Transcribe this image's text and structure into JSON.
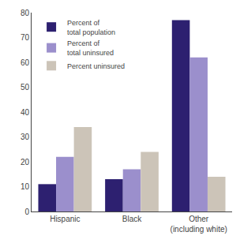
{
  "chart_data": {
    "type": "bar",
    "categories": [
      "Hispanic",
      "Black",
      "Other\n(including white)"
    ],
    "series": [
      {
        "name": "Percent of\ntotal population",
        "color": "#2d2070",
        "values": [
          11,
          13,
          77
        ]
      },
      {
        "name": "Percent of\ntotal uninsured",
        "color": "#9b8fcc",
        "values": [
          22,
          17,
          62
        ]
      },
      {
        "name": "Percent uninsured",
        "color": "#ccc4b8",
        "values": [
          34,
          24,
          14
        ]
      }
    ],
    "ylim": [
      0,
      80
    ],
    "yticks": [
      0,
      10,
      20,
      30,
      40,
      50,
      60,
      70,
      80
    ],
    "grid": false,
    "legend": "upper left"
  }
}
